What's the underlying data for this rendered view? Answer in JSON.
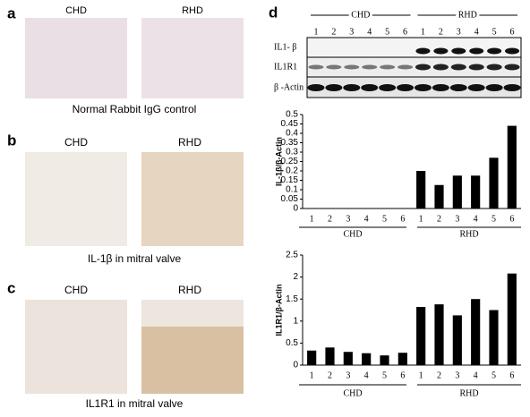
{
  "panels": {
    "a": {
      "label": "a",
      "left": "CHD",
      "right": "RHD",
      "caption": "Normal Rabbit IgG control"
    },
    "b": {
      "label": "b",
      "left": "CHD",
      "right": "RHD",
      "caption": "IL-1β in mitral valve"
    },
    "c": {
      "label": "c",
      "left": "CHD",
      "right": "RHD",
      "caption": "IL1R1 in mitral valve"
    },
    "d": {
      "label": "d"
    }
  },
  "blot": {
    "groups": [
      "CHD",
      "RHD"
    ],
    "lanes": [
      "1",
      "2",
      "3",
      "4",
      "5",
      "6",
      "1",
      "2",
      "3",
      "4",
      "5",
      "6"
    ],
    "rows": [
      "IL1- β",
      "IL1R1",
      "β -Actin"
    ]
  },
  "chart_data": [
    {
      "type": "bar",
      "ylabel": "IL-1β/β-Actin",
      "categories": [
        "1",
        "2",
        "3",
        "4",
        "5",
        "6",
        "1",
        "2",
        "3",
        "4",
        "5",
        "6"
      ],
      "groups": [
        "CHD",
        "RHD"
      ],
      "values": [
        0,
        0,
        0,
        0,
        0,
        0,
        0.2,
        0.125,
        0.175,
        0.175,
        0.27,
        0.44
      ],
      "color": "#000000",
      "ylim": [
        0,
        0.5
      ],
      "yticks": [
        0,
        0.05,
        0.1,
        0.15,
        0.2,
        0.25,
        0.3,
        0.35,
        0.4,
        0.45,
        0.5
      ]
    },
    {
      "type": "bar",
      "ylabel": "IL1R1/β-Actin",
      "categories": [
        "1",
        "2",
        "3",
        "4",
        "5",
        "6",
        "1",
        "2",
        "3",
        "4",
        "5",
        "6"
      ],
      "groups": [
        "CHD",
        "RHD"
      ],
      "values": [
        0.33,
        0.4,
        0.3,
        0.27,
        0.22,
        0.28,
        1.32,
        1.38,
        1.13,
        1.5,
        1.25,
        2.08
      ],
      "color": "#000000",
      "ylim": [
        0,
        2.5
      ],
      "yticks": [
        0,
        0.5,
        1,
        1.5,
        2,
        2.5
      ]
    }
  ]
}
